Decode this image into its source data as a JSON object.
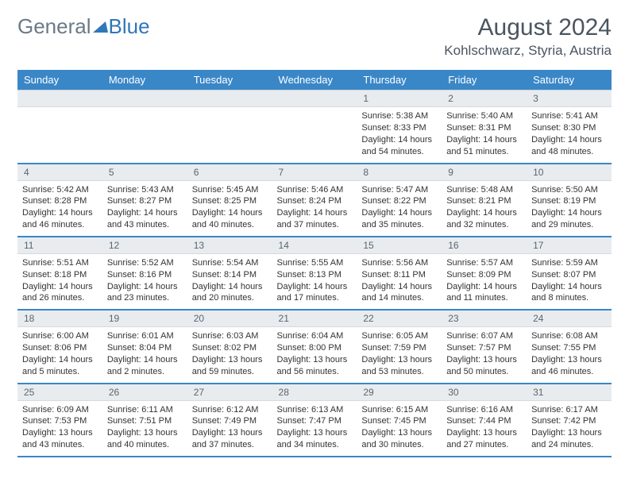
{
  "logo": {
    "part1": "General",
    "part2": "Blue"
  },
  "header": {
    "month_title": "August 2024",
    "location": "Kohlschwarz, Styria, Austria"
  },
  "colors": {
    "header_bg": "#3a87c8",
    "header_text": "#ffffff",
    "daynum_bg": "#e9ecef",
    "border_accent": "#3a87c8",
    "text": "#333333",
    "title_text": "#4a5560",
    "logo_gray": "#6b7a86",
    "logo_blue": "#2f77b8"
  },
  "weekdays": [
    "Sunday",
    "Monday",
    "Tuesday",
    "Wednesday",
    "Thursday",
    "Friday",
    "Saturday"
  ],
  "weeks": [
    [
      null,
      null,
      null,
      null,
      {
        "n": "1",
        "sunrise": "5:38 AM",
        "sunset": "8:33 PM",
        "daylight": "14 hours and 54 minutes."
      },
      {
        "n": "2",
        "sunrise": "5:40 AM",
        "sunset": "8:31 PM",
        "daylight": "14 hours and 51 minutes."
      },
      {
        "n": "3",
        "sunrise": "5:41 AM",
        "sunset": "8:30 PM",
        "daylight": "14 hours and 48 minutes."
      }
    ],
    [
      {
        "n": "4",
        "sunrise": "5:42 AM",
        "sunset": "8:28 PM",
        "daylight": "14 hours and 46 minutes."
      },
      {
        "n": "5",
        "sunrise": "5:43 AM",
        "sunset": "8:27 PM",
        "daylight": "14 hours and 43 minutes."
      },
      {
        "n": "6",
        "sunrise": "5:45 AM",
        "sunset": "8:25 PM",
        "daylight": "14 hours and 40 minutes."
      },
      {
        "n": "7",
        "sunrise": "5:46 AM",
        "sunset": "8:24 PM",
        "daylight": "14 hours and 37 minutes."
      },
      {
        "n": "8",
        "sunrise": "5:47 AM",
        "sunset": "8:22 PM",
        "daylight": "14 hours and 35 minutes."
      },
      {
        "n": "9",
        "sunrise": "5:48 AM",
        "sunset": "8:21 PM",
        "daylight": "14 hours and 32 minutes."
      },
      {
        "n": "10",
        "sunrise": "5:50 AM",
        "sunset": "8:19 PM",
        "daylight": "14 hours and 29 minutes."
      }
    ],
    [
      {
        "n": "11",
        "sunrise": "5:51 AM",
        "sunset": "8:18 PM",
        "daylight": "14 hours and 26 minutes."
      },
      {
        "n": "12",
        "sunrise": "5:52 AM",
        "sunset": "8:16 PM",
        "daylight": "14 hours and 23 minutes."
      },
      {
        "n": "13",
        "sunrise": "5:54 AM",
        "sunset": "8:14 PM",
        "daylight": "14 hours and 20 minutes."
      },
      {
        "n": "14",
        "sunrise": "5:55 AM",
        "sunset": "8:13 PM",
        "daylight": "14 hours and 17 minutes."
      },
      {
        "n": "15",
        "sunrise": "5:56 AM",
        "sunset": "8:11 PM",
        "daylight": "14 hours and 14 minutes."
      },
      {
        "n": "16",
        "sunrise": "5:57 AM",
        "sunset": "8:09 PM",
        "daylight": "14 hours and 11 minutes."
      },
      {
        "n": "17",
        "sunrise": "5:59 AM",
        "sunset": "8:07 PM",
        "daylight": "14 hours and 8 minutes."
      }
    ],
    [
      {
        "n": "18",
        "sunrise": "6:00 AM",
        "sunset": "8:06 PM",
        "daylight": "14 hours and 5 minutes."
      },
      {
        "n": "19",
        "sunrise": "6:01 AM",
        "sunset": "8:04 PM",
        "daylight": "14 hours and 2 minutes."
      },
      {
        "n": "20",
        "sunrise": "6:03 AM",
        "sunset": "8:02 PM",
        "daylight": "13 hours and 59 minutes."
      },
      {
        "n": "21",
        "sunrise": "6:04 AM",
        "sunset": "8:00 PM",
        "daylight": "13 hours and 56 minutes."
      },
      {
        "n": "22",
        "sunrise": "6:05 AM",
        "sunset": "7:59 PM",
        "daylight": "13 hours and 53 minutes."
      },
      {
        "n": "23",
        "sunrise": "6:07 AM",
        "sunset": "7:57 PM",
        "daylight": "13 hours and 50 minutes."
      },
      {
        "n": "24",
        "sunrise": "6:08 AM",
        "sunset": "7:55 PM",
        "daylight": "13 hours and 46 minutes."
      }
    ],
    [
      {
        "n": "25",
        "sunrise": "6:09 AM",
        "sunset": "7:53 PM",
        "daylight": "13 hours and 43 minutes."
      },
      {
        "n": "26",
        "sunrise": "6:11 AM",
        "sunset": "7:51 PM",
        "daylight": "13 hours and 40 minutes."
      },
      {
        "n": "27",
        "sunrise": "6:12 AM",
        "sunset": "7:49 PM",
        "daylight": "13 hours and 37 minutes."
      },
      {
        "n": "28",
        "sunrise": "6:13 AM",
        "sunset": "7:47 PM",
        "daylight": "13 hours and 34 minutes."
      },
      {
        "n": "29",
        "sunrise": "6:15 AM",
        "sunset": "7:45 PM",
        "daylight": "13 hours and 30 minutes."
      },
      {
        "n": "30",
        "sunrise": "6:16 AM",
        "sunset": "7:44 PM",
        "daylight": "13 hours and 27 minutes."
      },
      {
        "n": "31",
        "sunrise": "6:17 AM",
        "sunset": "7:42 PM",
        "daylight": "13 hours and 24 minutes."
      }
    ]
  ],
  "labels": {
    "sunrise": "Sunrise: ",
    "sunset": "Sunset: ",
    "daylight": "Daylight: "
  }
}
